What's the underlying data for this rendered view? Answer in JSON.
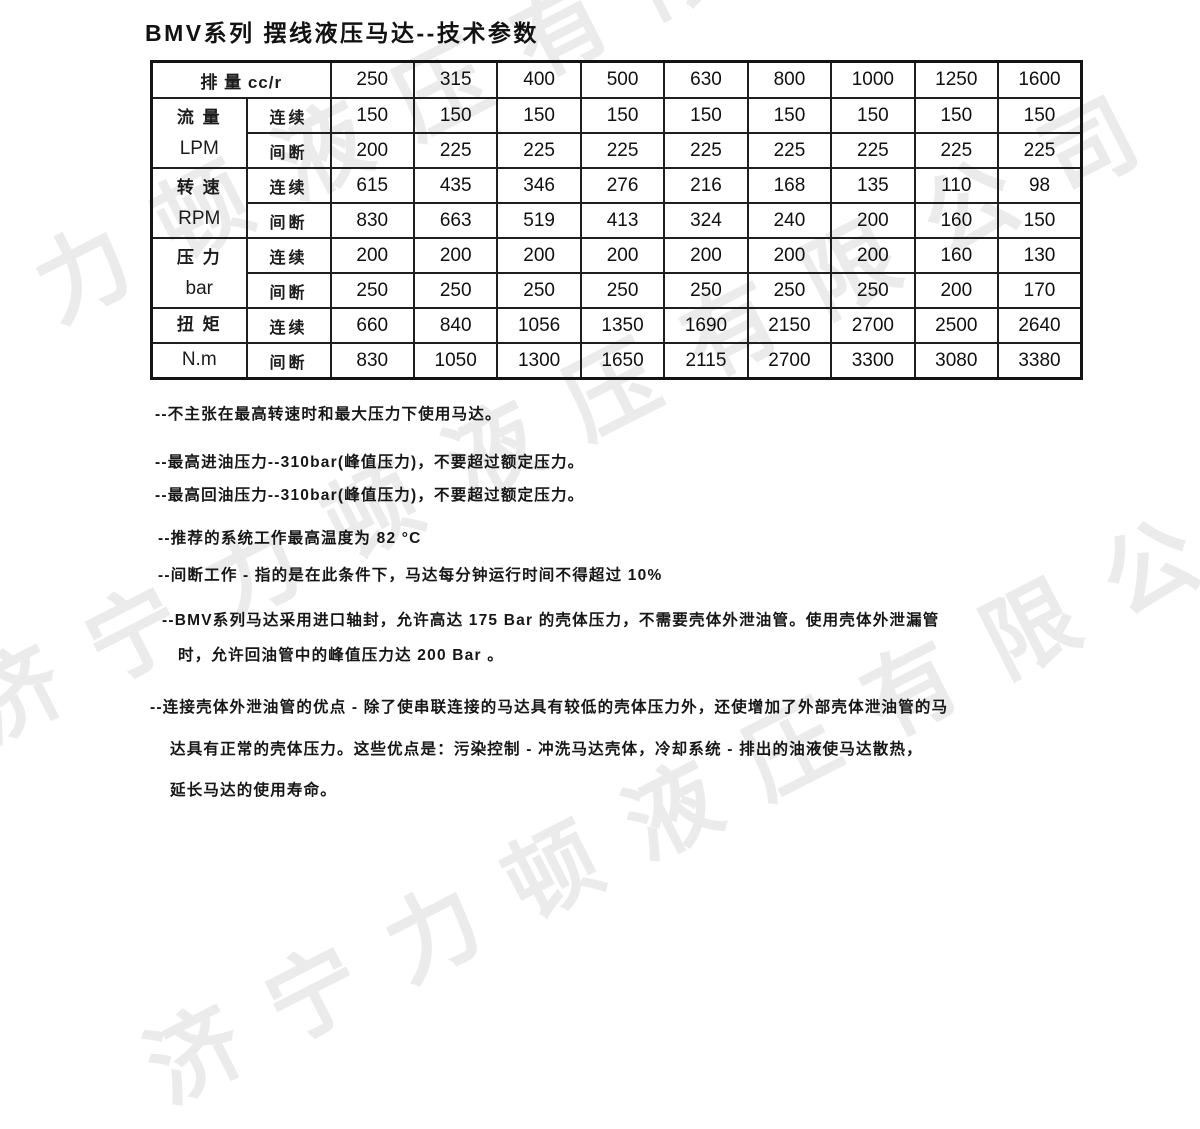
{
  "title": "BMV系列 摆线液压马达--技术参数",
  "watermark": {
    "text": "济宁力顿液压有限公司"
  },
  "table": {
    "corner_label": "排 量 cc/r",
    "displacements": [
      "250",
      "315",
      "400",
      "500",
      "630",
      "800",
      "1000",
      "1250",
      "1600"
    ],
    "groups": [
      {
        "param_line1": "流 量",
        "param_line2": "LPM",
        "split_param": false,
        "rows": [
          {
            "mode": "连续",
            "values": [
              "150",
              "150",
              "150",
              "150",
              "150",
              "150",
              "150",
              "150",
              "150"
            ]
          },
          {
            "mode": "间断",
            "values": [
              "200",
              "225",
              "225",
              "225",
              "225",
              "225",
              "225",
              "225",
              "225"
            ]
          }
        ]
      },
      {
        "param_line1": "转 速",
        "param_line2": "RPM",
        "split_param": false,
        "rows": [
          {
            "mode": "连续",
            "values": [
              "615",
              "435",
              "346",
              "276",
              "216",
              "168",
              "135",
              "110",
              "98"
            ]
          },
          {
            "mode": "间断",
            "values": [
              "830",
              "663",
              "519",
              "413",
              "324",
              "240",
              "200",
              "160",
              "150"
            ]
          }
        ]
      },
      {
        "param_line1": "压 力",
        "param_line2": "bar",
        "split_param": false,
        "rows": [
          {
            "mode": "连续",
            "values": [
              "200",
              "200",
              "200",
              "200",
              "200",
              "200",
              "200",
              "160",
              "130"
            ]
          },
          {
            "mode": "间断",
            "values": [
              "250",
              "250",
              "250",
              "250",
              "250",
              "250",
              "250",
              "200",
              "170"
            ]
          }
        ]
      },
      {
        "param_line1": "扭 矩",
        "param_line2": "N.m",
        "split_param": true,
        "rows": [
          {
            "mode": "连续",
            "values": [
              "660",
              "840",
              "1056",
              "1350",
              "1690",
              "2150",
              "2700",
              "2500",
              "2640"
            ]
          },
          {
            "mode": "间断",
            "values": [
              "830",
              "1050",
              "1300",
              "1650",
              "2115",
              "2700",
              "3300",
              "3080",
              "3380"
            ]
          }
        ]
      }
    ]
  },
  "notes": [
    "--不主张在最高转速时和最大压力下使用马达。",
    "--最高进油压力--310bar(峰值压力)，不要超过额定压力。",
    "--最高回油压力--310bar(峰值压力)，不要超过额定压力。",
    "--推荐的系统工作最高温度为 82 °C",
    "--间断工作 - 指的是在此条件下，马达每分钟运行时间不得超过 10%",
    "--BMV系列马达采用进口轴封，允许高达 175 Bar 的壳体压力，不需要壳体外泄油管。使用壳体外泄漏管",
    "时，允许回油管中的峰值压力达 200 Bar 。",
    "--连接壳体外泄油管的优点 - 除了使串联连接的马达具有较低的壳体压力外，还使增加了外部壳体泄油管的马",
    "达具有正常的壳体压力。这些优点是：污染控制 - 冲洗马达壳体，冷却系统 - 排出的油液使马达散热，",
    "延长马达的使用寿命。"
  ]
}
